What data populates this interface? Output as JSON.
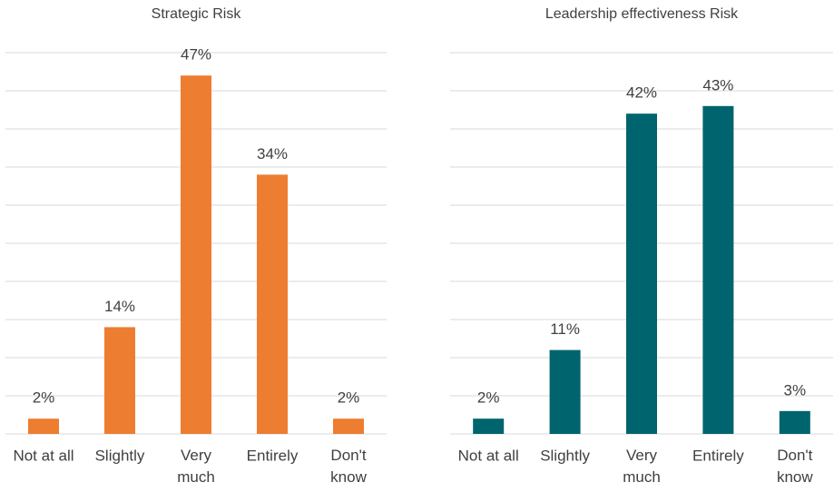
{
  "chart_data": [
    {
      "type": "bar",
      "title": "Strategic Risk",
      "categories": [
        "Not at all",
        "Slightly",
        "Very much",
        "Entirely",
        "Don't know"
      ],
      "values": [
        2,
        14,
        47,
        34,
        2
      ],
      "value_labels": [
        "2%",
        "14%",
        "47%",
        "34%",
        "2%"
      ],
      "color": "#ed7d31",
      "ylim": [
        0,
        50
      ],
      "yticks": [
        0,
        5,
        10,
        15,
        20,
        25,
        30,
        35,
        40,
        45,
        50
      ],
      "grid": true
    },
    {
      "type": "bar",
      "title": "Leadership effectiveness Risk",
      "categories": [
        "Not at all",
        "Slightly",
        "Very much",
        "Entirely",
        "Don't know"
      ],
      "values": [
        2,
        11,
        42,
        43,
        3
      ],
      "value_labels": [
        "2%",
        "11%",
        "42%",
        "43%",
        "3%"
      ],
      "color": "#00646e",
      "ylim": [
        0,
        50
      ],
      "yticks": [
        0,
        5,
        10,
        15,
        20,
        25,
        30,
        35,
        40,
        45,
        50
      ],
      "grid": true
    }
  ]
}
